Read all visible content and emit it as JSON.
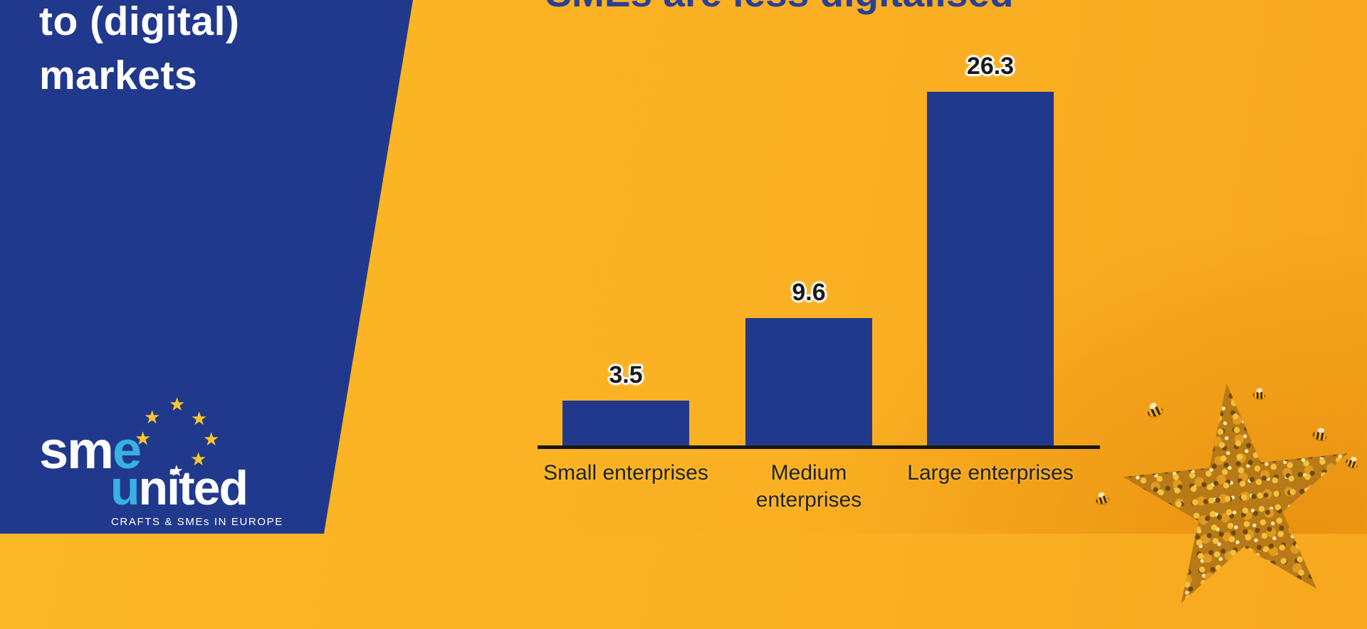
{
  "slide": {
    "top_title": "SMEs are less digitalised",
    "left_panel": {
      "heading_line1": "to (digital)",
      "heading_line2": "markets"
    },
    "logo": {
      "sme_white": "sm",
      "sme_accent": "e",
      "united_accent": "u",
      "united_white": "nited",
      "tagline": "CRAFTS & SMEs IN EUROPE",
      "star_glyph": "★",
      "star_gold": "#FFC72C",
      "accent_color": "#38B1E2"
    }
  },
  "chart_data": {
    "type": "bar",
    "title": "SMEs are less digitalised",
    "categories": [
      "Small enterprises",
      "Medium enterprises",
      "Large enterprises"
    ],
    "values": [
      3.5,
      9.6,
      26.3
    ],
    "xlabel": "",
    "ylabel": "",
    "ylim": [
      0,
      30
    ],
    "grid": false,
    "legend": false,
    "bar_color": "#21398C",
    "axis_color": "#161616",
    "value_label_color": "#1c1c1c",
    "background_color": "#FBB424"
  }
}
